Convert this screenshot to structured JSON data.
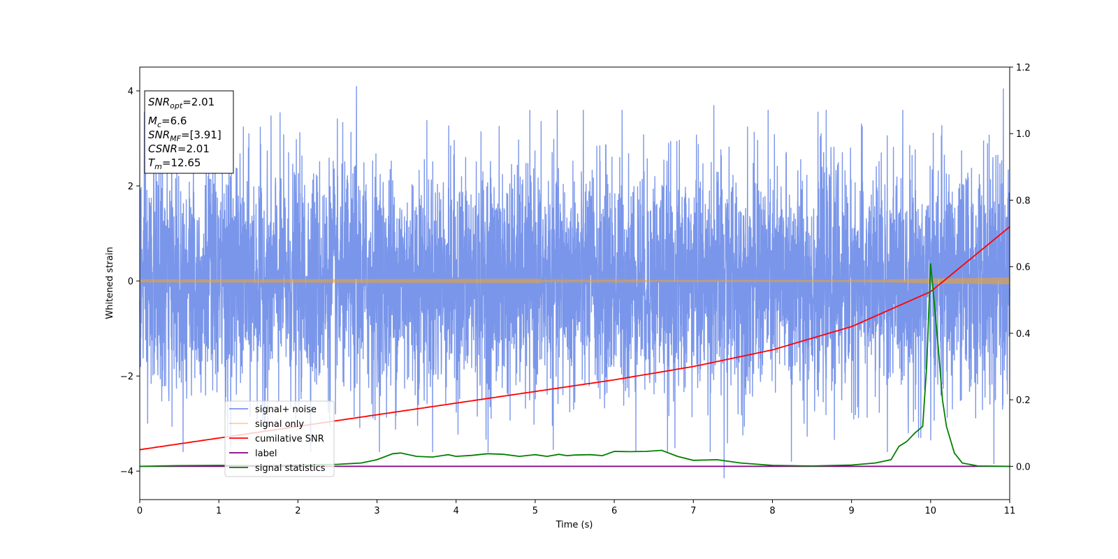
{
  "chart_data": {
    "type": "line",
    "xlabel": "Time (s)",
    "ylabel": "Whitened strain",
    "xlim": [
      0,
      11
    ],
    "ylim": [
      -4.6,
      4.5
    ],
    "ylim_right": [
      -0.1,
      1.2
    ],
    "x_ticks": [
      0,
      1,
      2,
      3,
      4,
      5,
      6,
      7,
      8,
      9,
      10,
      11
    ],
    "y_ticks": [
      -4,
      -2,
      0,
      2,
      4
    ],
    "y_ticks_right": [
      "0.0",
      "0.2",
      "0.4",
      "0.6",
      "0.8",
      "1.0",
      "1.2"
    ],
    "grid": false,
    "legend_position": "lower-left",
    "info_box": {
      "snr_opt": {
        "sym": "SNR",
        "sub": "opt",
        "val": "=2.01"
      },
      "mc": {
        "sym": "M",
        "sub": "c",
        "val": "=6.6"
      },
      "snr_mf": {
        "sym": "SNR",
        "sub": "MF",
        "val": "=[3.91]"
      },
      "csnr": {
        "sym": "CSNR",
        "sub": "",
        "val": "=2.01"
      },
      "tm": {
        "sym": "T",
        "sub": "m",
        "val": "=12.65"
      }
    },
    "series": [
      {
        "name": "signal+ noise",
        "color": "#4169e1",
        "axis": "left",
        "description_note": "dense Gaussian-like noise, envelope approx ±2.5 with peaks to ±4.1",
        "envelope": 2.3,
        "peaks": [
          [
            2.74,
            4.1
          ],
          [
            7.39,
            -4.15
          ],
          [
            10.92,
            4.05
          ],
          [
            0.1,
            -3.0
          ],
          [
            1.15,
            -3.5
          ],
          [
            8.24,
            -3.8
          ],
          [
            10.8,
            -3.85
          ],
          [
            6.1,
            3.6
          ],
          [
            7.26,
            3.7
          ]
        ]
      },
      {
        "name": "signal only",
        "color": "#f5a623",
        "axis": "left",
        "x": [
          0,
          9,
          9.5,
          10,
          10.5,
          11
        ],
        "amplitude": [
          0.01,
          0.02,
          0.03,
          0.05,
          0.06,
          0.07
        ]
      },
      {
        "name": "cumilative SNR",
        "color": "#ff0000",
        "axis": "right",
        "x": [
          0,
          1,
          2,
          3,
          4,
          5,
          6,
          7,
          8,
          9,
          10,
          11
        ],
        "y": [
          0.05,
          0.085,
          0.12,
          0.155,
          0.19,
          0.225,
          0.26,
          0.3,
          0.35,
          0.42,
          0.525,
          0.72
        ]
      },
      {
        "name": "label",
        "color": "#800080",
        "axis": "right",
        "x": [
          0,
          11
        ],
        "y": [
          0,
          0
        ]
      },
      {
        "name": "signal statistics",
        "color": "#008000",
        "axis": "right",
        "x": [
          0,
          0.5,
          1,
          1.5,
          2,
          2.5,
          2.8,
          3.0,
          3.2,
          3.3,
          3.5,
          3.7,
          3.9,
          4.0,
          4.2,
          4.4,
          4.6,
          4.8,
          5.0,
          5.15,
          5.3,
          5.4,
          5.5,
          5.7,
          5.85,
          6.0,
          6.2,
          6.4,
          6.6,
          6.8,
          7.0,
          7.3,
          7.6,
          8.0,
          8.5,
          9.0,
          9.3,
          9.5,
          9.6,
          9.7,
          9.8,
          9.9,
          9.95,
          10.0,
          10.05,
          10.1,
          10.15,
          10.2,
          10.3,
          10.4,
          10.6,
          11.0
        ],
        "y": [
          0.0,
          0.002,
          0.003,
          0.002,
          0.004,
          0.006,
          0.01,
          0.02,
          0.038,
          0.04,
          0.03,
          0.028,
          0.035,
          0.03,
          0.033,
          0.038,
          0.036,
          0.03,
          0.035,
          0.03,
          0.036,
          0.032,
          0.034,
          0.035,
          0.032,
          0.045,
          0.044,
          0.045,
          0.048,
          0.03,
          0.018,
          0.02,
          0.01,
          0.003,
          0.001,
          0.004,
          0.01,
          0.02,
          0.06,
          0.075,
          0.1,
          0.12,
          0.3,
          0.61,
          0.48,
          0.35,
          0.2,
          0.12,
          0.04,
          0.01,
          0.001,
          0.0
        ]
      }
    ]
  }
}
